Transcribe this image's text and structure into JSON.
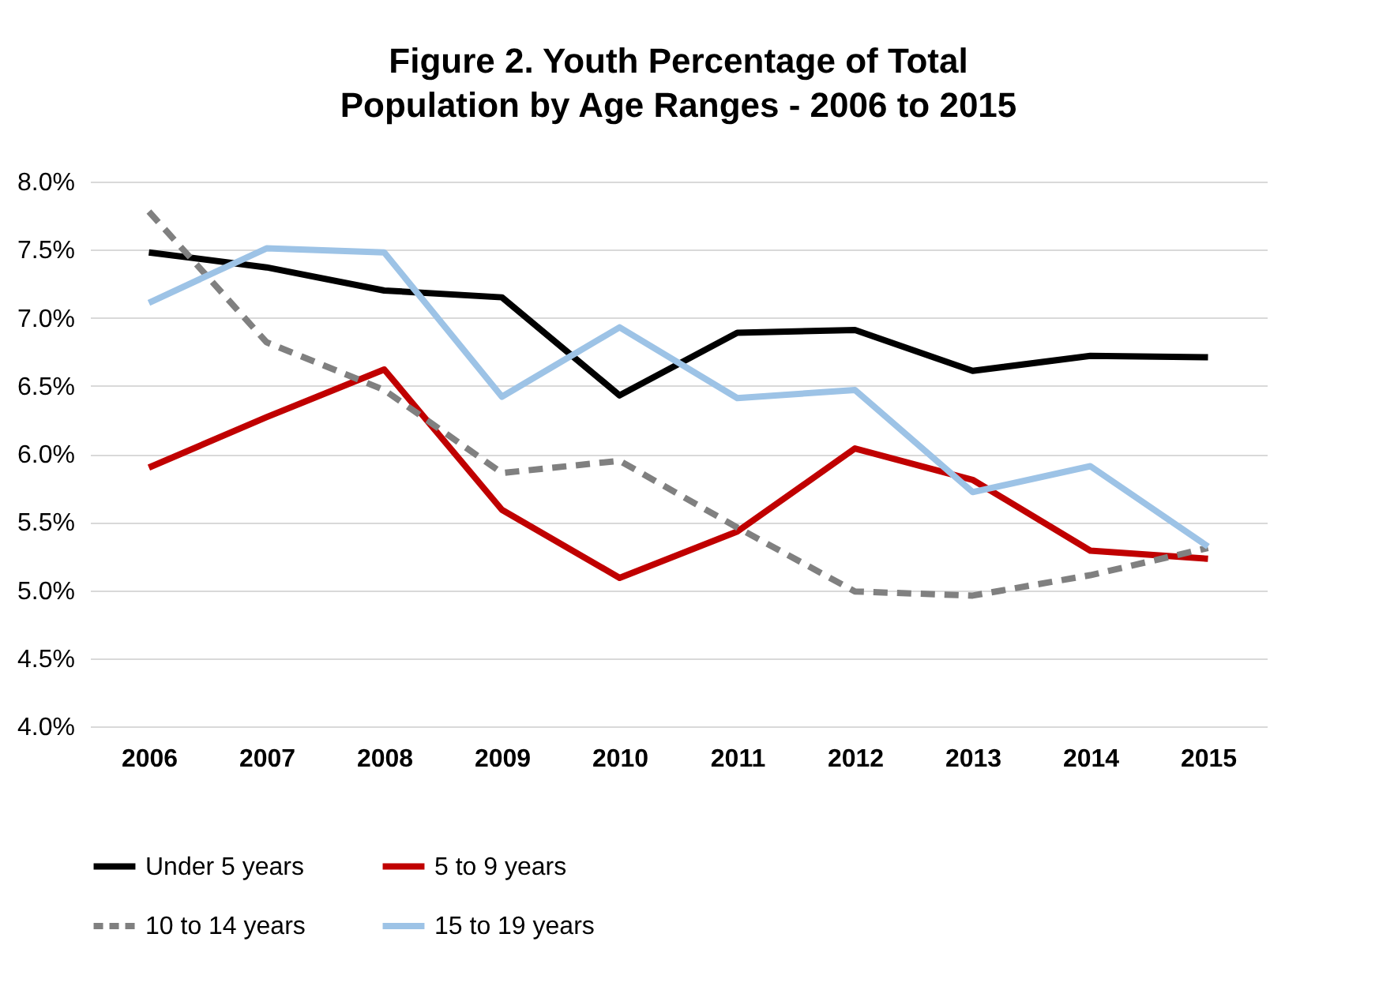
{
  "chart_data": {
    "type": "line",
    "title": "Figure 2. Youth Percentage of Total Population by Age Ranges - 2006 to 2015",
    "categories": [
      "2006",
      "2007",
      "2008",
      "2009",
      "2010",
      "2011",
      "2012",
      "2013",
      "2014",
      "2015"
    ],
    "ylim": [
      4,
      8
    ],
    "yticks": [
      {
        "value": 4,
        "label": "4.0%"
      },
      {
        "value": 4.5,
        "label": "4.5%"
      },
      {
        "value": 5,
        "label": "5.0%"
      },
      {
        "value": 5.5,
        "label": "5.5%"
      },
      {
        "value": 6,
        "label": "6.0%"
      },
      {
        "value": 6.5,
        "label": "6.5%"
      },
      {
        "value": 7,
        "label": "7.0%"
      },
      {
        "value": 7.5,
        "label": "7.5%"
      },
      {
        "value": 8,
        "label": "8.0%"
      }
    ],
    "grid": "y",
    "legend": "bottom",
    "marker": "none",
    "series": [
      {
        "name": "Under 5 years",
        "color": "#000000",
        "line_style": "solid",
        "values": [
          7.48,
          7.37,
          7.2,
          7.15,
          6.43,
          6.89,
          6.91,
          6.61,
          6.72,
          6.71
        ]
      },
      {
        "name": "5 to 9 years",
        "color": "#c00000",
        "line_style": "solid",
        "values": [
          5.9,
          6.27,
          6.62,
          5.59,
          5.09,
          5.43,
          6.04,
          5.81,
          5.29,
          5.23
        ]
      },
      {
        "name": "10 to 14 years",
        "color": "#808080",
        "line_style": "dashed",
        "values": [
          7.78,
          6.82,
          6.47,
          5.86,
          5.95,
          5.46,
          4.99,
          4.96,
          5.11,
          5.31
        ]
      },
      {
        "name": "15 to 19 years",
        "color": "#9dc3e6",
        "line_style": "solid",
        "values": [
          7.11,
          7.51,
          7.48,
          6.42,
          6.93,
          6.41,
          6.47,
          5.72,
          5.91,
          5.32
        ]
      }
    ]
  }
}
